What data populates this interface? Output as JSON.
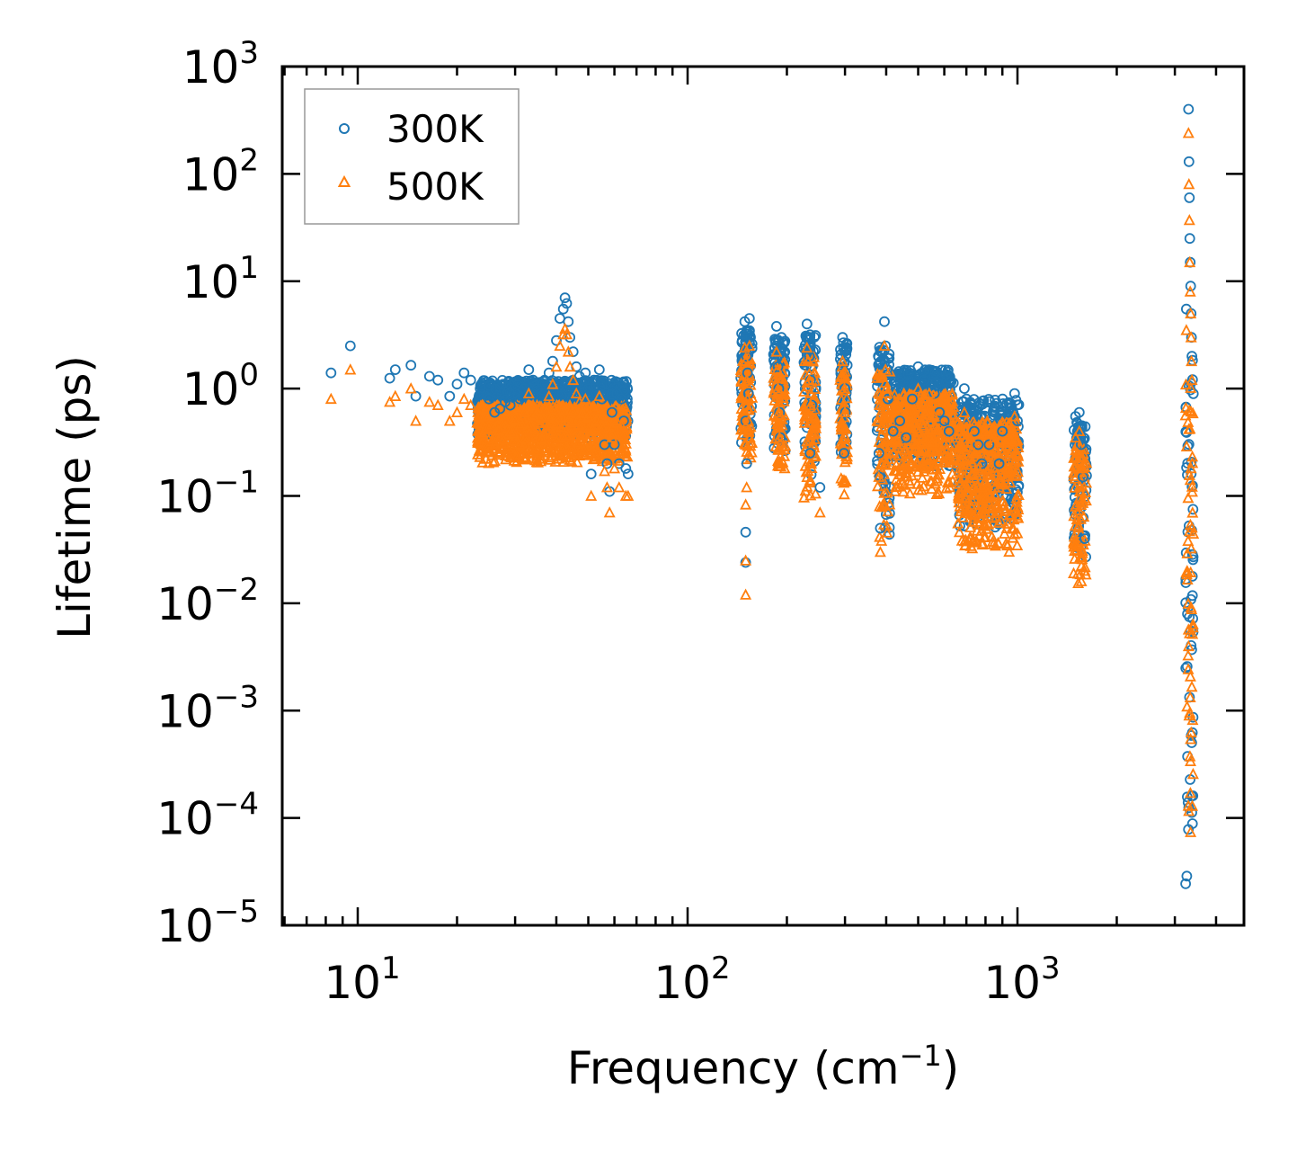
{
  "chart_data": {
    "type": "scatter",
    "xscale": "log",
    "yscale": "log",
    "xlabel_base": "Frequency (cm",
    "xlabel_exp": "−1",
    "xlabel_close": ")",
    "ylabel": "Lifetime (ps)",
    "xlim": [
      6,
      5000
    ],
    "ylim": [
      1e-05,
      1000
    ],
    "x_ticks": [
      {
        "value": 10,
        "base": "10",
        "exp": "1"
      },
      {
        "value": 100,
        "base": "10",
        "exp": "2"
      },
      {
        "value": 1000,
        "base": "10",
        "exp": "3"
      }
    ],
    "y_ticks": [
      {
        "value": 1000,
        "base": "10",
        "exp": "3"
      },
      {
        "value": 100,
        "base": "10",
        "exp": "2"
      },
      {
        "value": 10,
        "base": "10",
        "exp": "1"
      },
      {
        "value": 1,
        "base": "10",
        "exp": "0"
      },
      {
        "value": 0.1,
        "base": "10",
        "exp": "−1"
      },
      {
        "value": 0.01,
        "base": "10",
        "exp": "−2"
      },
      {
        "value": 0.001,
        "base": "10",
        "exp": "−3"
      },
      {
        "value": 0.0001,
        "base": "10",
        "exp": "−4"
      },
      {
        "value": 1e-05,
        "base": "10",
        "exp": "−5"
      }
    ],
    "legend_position": "top-left",
    "series": [
      {
        "name": "300K",
        "marker": "circle",
        "color": "#1f77b4",
        "points": [
          [
            8.3,
            1.4
          ],
          [
            9.5,
            2.5
          ],
          [
            12.5,
            1.25
          ],
          [
            13,
            1.5
          ],
          [
            14.5,
            1.65
          ],
          [
            15,
            0.85
          ],
          [
            16.5,
            1.3
          ],
          [
            17.5,
            1.2
          ],
          [
            19,
            0.85
          ],
          [
            20,
            1.1
          ],
          [
            21,
            1.4
          ],
          [
            22,
            1.2
          ],
          [
            23.5,
            1.0
          ],
          [
            25,
            0.8
          ],
          [
            26,
            0.6
          ],
          [
            27,
            0.65
          ],
          [
            28,
            0.75
          ],
          [
            29,
            0.7
          ],
          [
            30,
            0.9
          ],
          [
            31,
            0.8
          ],
          [
            32,
            1.0
          ],
          [
            33,
            1.5
          ],
          [
            34,
            1.2
          ],
          [
            35,
            1.0
          ],
          [
            36,
            0.9
          ],
          [
            37,
            1.1
          ],
          [
            38,
            1.4
          ],
          [
            39,
            1.8
          ],
          [
            40,
            2.8
          ],
          [
            41,
            4.5
          ],
          [
            42,
            5.5
          ],
          [
            42.5,
            7.0
          ],
          [
            43,
            6.2
          ],
          [
            43.5,
            4.2
          ],
          [
            44,
            3.0
          ],
          [
            45,
            2.2
          ],
          [
            46,
            1.6
          ],
          [
            47,
            1.3
          ],
          [
            48,
            1.1
          ],
          [
            49,
            1.4
          ],
          [
            50,
            1.0
          ],
          [
            51,
            0.16
          ],
          [
            52,
            1.2
          ],
          [
            53,
            0.9
          ],
          [
            54,
            1.5
          ],
          [
            55,
            0.8
          ],
          [
            56,
            0.3
          ],
          [
            57,
            0.2
          ],
          [
            58,
            0.11
          ],
          [
            59,
            0.6
          ],
          [
            60,
            0.3
          ],
          [
            61,
            0.9
          ],
          [
            62,
            0.2
          ],
          [
            63,
            0.8
          ],
          [
            64,
            0.5
          ],
          [
            65,
            0.18
          ],
          [
            66,
            0.16
          ],
          [
            149,
            4.2
          ],
          [
            150,
            3.0
          ],
          [
            151,
            2.0
          ],
          [
            152,
            1.4
          ],
          [
            153,
            0.9
          ],
          [
            150,
            0.5
          ],
          [
            151,
            0.2
          ],
          [
            150,
            0.046
          ],
          [
            150,
            0.024
          ],
          [
            154,
            4.5
          ],
          [
            186,
            3.8
          ],
          [
            187,
            2.5
          ],
          [
            188,
            1.6
          ],
          [
            189,
            1.0
          ],
          [
            190,
            0.6
          ],
          [
            191,
            0.35
          ],
          [
            230,
            4.0
          ],
          [
            232,
            3.0
          ],
          [
            234,
            2.0
          ],
          [
            236,
            1.2
          ],
          [
            238,
            0.7
          ],
          [
            235,
            0.25
          ],
          [
            252,
            0.12
          ],
          [
            295,
            3.0
          ],
          [
            297,
            2.4
          ],
          [
            299,
            1.8
          ],
          [
            300,
            1.0
          ],
          [
            301,
            0.6
          ],
          [
            298,
            0.25
          ],
          [
            380,
            0.25
          ],
          [
            382,
            0.15
          ],
          [
            384,
            0.05
          ],
          [
            395,
            4.2
          ],
          [
            398,
            2.5
          ],
          [
            402,
            1.5
          ],
          [
            405,
            0.8
          ],
          [
            420,
            0.4
          ],
          [
            440,
            0.5
          ],
          [
            460,
            0.35
          ],
          [
            480,
            0.8
          ],
          [
            500,
            1.6
          ],
          [
            520,
            1.2
          ],
          [
            540,
            1.5
          ],
          [
            560,
            0.9
          ],
          [
            580,
            0.6
          ],
          [
            600,
            0.5
          ],
          [
            620,
            0.4
          ],
          [
            690,
            1.0
          ],
          [
            700,
            0.8
          ],
          [
            720,
            0.6
          ],
          [
            740,
            0.4
          ],
          [
            760,
            0.3
          ],
          [
            780,
            0.2
          ],
          [
            800,
            0.65
          ],
          [
            820,
            0.3
          ],
          [
            850,
            0.6
          ],
          [
            880,
            0.2
          ],
          [
            900,
            0.4
          ],
          [
            940,
            0.6
          ],
          [
            980,
            0.9
          ],
          [
            1000,
            0.5
          ],
          [
            1500,
            0.55
          ],
          [
            1520,
            0.4
          ],
          [
            1540,
            0.6
          ],
          [
            1560,
            0.3
          ],
          [
            1580,
            0.15
          ],
          [
            1600,
            0.04
          ],
          [
            3250,
            5.5
          ],
          [
            3300,
            400
          ],
          [
            3310,
            130
          ],
          [
            3320,
            60
          ],
          [
            3330,
            25
          ],
          [
            3340,
            15
          ],
          [
            3350,
            9
          ],
          [
            3360,
            5
          ],
          [
            3370,
            3
          ],
          [
            3380,
            2
          ]
        ]
      },
      {
        "name": "500K",
        "marker": "triangle",
        "color": "#ff7f0e",
        "points": [
          [
            8.3,
            0.8
          ],
          [
            9.5,
            1.5
          ],
          [
            12.5,
            0.75
          ],
          [
            13,
            0.85
          ],
          [
            14.5,
            1.0
          ],
          [
            15,
            0.5
          ],
          [
            16.5,
            0.75
          ],
          [
            17.5,
            0.7
          ],
          [
            19,
            0.5
          ],
          [
            20,
            0.6
          ],
          [
            21,
            0.8
          ],
          [
            22,
            0.7
          ],
          [
            23.5,
            0.55
          ],
          [
            25,
            0.45
          ],
          [
            26,
            0.3
          ],
          [
            27,
            0.35
          ],
          [
            28,
            0.45
          ],
          [
            29,
            0.4
          ],
          [
            30,
            0.5
          ],
          [
            31,
            0.45
          ],
          [
            32,
            0.6
          ],
          [
            33,
            0.9
          ],
          [
            34,
            0.7
          ],
          [
            35,
            0.6
          ],
          [
            36,
            0.55
          ],
          [
            37,
            0.65
          ],
          [
            38,
            0.85
          ],
          [
            39,
            1.1
          ],
          [
            40,
            1.6
          ],
          [
            41,
            2.5
          ],
          [
            42,
            3.2
          ],
          [
            42.5,
            3.6
          ],
          [
            43,
            3.2
          ],
          [
            43.5,
            2.2
          ],
          [
            44,
            1.6
          ],
          [
            45,
            1.2
          ],
          [
            46,
            0.9
          ],
          [
            47,
            0.75
          ],
          [
            48,
            0.6
          ],
          [
            49,
            0.8
          ],
          [
            50,
            0.55
          ],
          [
            51,
            0.1
          ],
          [
            52,
            0.65
          ],
          [
            53,
            0.5
          ],
          [
            54,
            0.85
          ],
          [
            55,
            0.45
          ],
          [
            56,
            0.17
          ],
          [
            57,
            0.12
          ],
          [
            58,
            0.07
          ],
          [
            59,
            0.35
          ],
          [
            60,
            0.18
          ],
          [
            61,
            0.5
          ],
          [
            62,
            0.12
          ],
          [
            63,
            0.45
          ],
          [
            64,
            0.3
          ],
          [
            65,
            0.1
          ],
          [
            66,
            0.1
          ],
          [
            149,
            2.4
          ],
          [
            150,
            1.8
          ],
          [
            151,
            1.2
          ],
          [
            152,
            0.8
          ],
          [
            153,
            0.5
          ],
          [
            150,
            0.3
          ],
          [
            151,
            0.12
          ],
          [
            150,
            0.083
          ],
          [
            150,
            0.025
          ],
          [
            150,
            0.012
          ],
          [
            154,
            2.5
          ],
          [
            186,
            2.2
          ],
          [
            187,
            1.5
          ],
          [
            188,
            1.0
          ],
          [
            189,
            0.6
          ],
          [
            190,
            0.35
          ],
          [
            191,
            0.2
          ],
          [
            230,
            2.4
          ],
          [
            232,
            1.8
          ],
          [
            234,
            1.2
          ],
          [
            236,
            0.7
          ],
          [
            238,
            0.4
          ],
          [
            235,
            0.14
          ],
          [
            252,
            0.07
          ],
          [
            295,
            1.8
          ],
          [
            297,
            1.4
          ],
          [
            299,
            1.0
          ],
          [
            300,
            0.6
          ],
          [
            301,
            0.35
          ],
          [
            298,
            0.14
          ],
          [
            380,
            0.15
          ],
          [
            382,
            0.08
          ],
          [
            384,
            0.03
          ],
          [
            395,
            2.5
          ],
          [
            398,
            1.5
          ],
          [
            402,
            0.9
          ],
          [
            405,
            0.5
          ],
          [
            420,
            0.25
          ],
          [
            440,
            0.3
          ],
          [
            460,
            0.2
          ],
          [
            480,
            0.5
          ],
          [
            500,
            1.0
          ],
          [
            520,
            0.7
          ],
          [
            540,
            0.9
          ],
          [
            560,
            0.55
          ],
          [
            580,
            0.35
          ],
          [
            600,
            0.3
          ],
          [
            620,
            0.25
          ],
          [
            690,
            0.6
          ],
          [
            700,
            0.5
          ],
          [
            720,
            0.35
          ],
          [
            740,
            0.25
          ],
          [
            760,
            0.18
          ],
          [
            780,
            0.12
          ],
          [
            800,
            0.4
          ],
          [
            820,
            0.18
          ],
          [
            850,
            0.35
          ],
          [
            880,
            0.12
          ],
          [
            900,
            0.25
          ],
          [
            940,
            0.35
          ],
          [
            980,
            0.55
          ],
          [
            1000,
            0.3
          ],
          [
            1500,
            0.35
          ],
          [
            1520,
            0.25
          ],
          [
            1540,
            0.4
          ],
          [
            1560,
            0.18
          ],
          [
            1580,
            0.09
          ],
          [
            1600,
            0.02
          ],
          [
            3250,
            3.5
          ],
          [
            3300,
            240
          ],
          [
            3310,
            80
          ],
          [
            3320,
            37
          ],
          [
            3330,
            15
          ],
          [
            3340,
            8
          ],
          [
            3350,
            5
          ],
          [
            3360,
            3
          ],
          [
            3370,
            1.8
          ],
          [
            3380,
            1.2
          ]
        ]
      }
    ],
    "bands": [
      {
        "x": [
          23,
          66
        ],
        "lo300": 0.35,
        "hi300": 1.2,
        "lo500": 0.2,
        "hi500": 0.7
      },
      {
        "x": [
          145,
          157
        ],
        "lo300": 0.3,
        "hi300": 3.5,
        "lo500": 0.2,
        "hi500": 2.0
      },
      {
        "x": [
          182,
          198
        ],
        "lo300": 0.25,
        "hi300": 3.0,
        "lo500": 0.15,
        "hi500": 1.8
      },
      {
        "x": [
          225,
          245
        ],
        "lo300": 0.15,
        "hi300": 3.2,
        "lo500": 0.08,
        "hi500": 2.0
      },
      {
        "x": [
          290,
          305
        ],
        "lo300": 0.15,
        "hi300": 2.8,
        "lo500": 0.09,
        "hi500": 1.6
      },
      {
        "x": [
          375,
          410
        ],
        "lo300": 0.04,
        "hi300": 2.5,
        "lo500": 0.03,
        "hi500": 1.5
      },
      {
        "x": [
          420,
          640
        ],
        "lo300": 0.18,
        "hi300": 1.5,
        "lo500": 0.1,
        "hi500": 0.9
      },
      {
        "x": [
          660,
          1010
        ],
        "lo300": 0.05,
        "hi300": 0.8,
        "lo500": 0.03,
        "hi500": 0.5
      },
      {
        "x": [
          1480,
          1620
        ],
        "lo300": 0.025,
        "hi300": 0.5,
        "lo500": 0.015,
        "hi500": 0.3
      },
      {
        "x": [
          3230,
          3420
        ],
        "lo300": 2e-05,
        "hi300": 2.0,
        "lo500": 2e-05,
        "hi500": 1.2
      }
    ]
  }
}
